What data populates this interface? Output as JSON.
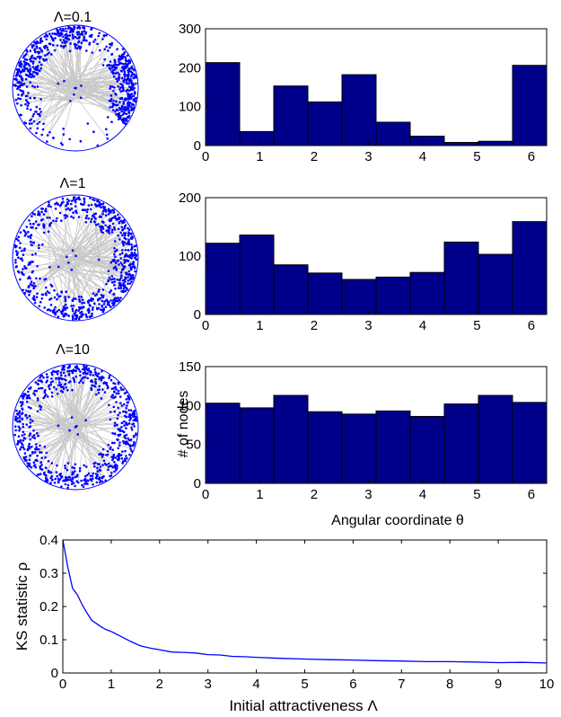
{
  "disk_titles": [
    "Λ=0.1",
    "Λ=1",
    "Λ=10"
  ],
  "colors": {
    "bar_fill": "#00008B",
    "bar_edge": "#000000",
    "node": "#0000FF",
    "edge": "#C8C8C8",
    "line": "#0000FF",
    "axis": "#000000"
  },
  "chart_data": [
    {
      "type": "bar",
      "panel": "histogram-lambda-0.1",
      "bin_edges": [
        0,
        0.6283,
        1.2566,
        1.885,
        2.5133,
        3.1416,
        3.7699,
        4.3982,
        5.0265,
        5.6549,
        6.2832
      ],
      "values": [
        213,
        36,
        153,
        112,
        182,
        60,
        24,
        8,
        11,
        206
      ],
      "xlim": [
        0,
        6.2832
      ],
      "ylim": [
        0,
        300
      ],
      "xticks": [
        0,
        1,
        2,
        3,
        4,
        5,
        6
      ],
      "yticks": [
        0,
        100,
        200,
        300
      ],
      "xlabel": "",
      "ylabel": ""
    },
    {
      "type": "bar",
      "panel": "histogram-lambda-1",
      "bin_edges": [
        0,
        0.6283,
        1.2566,
        1.885,
        2.5133,
        3.1416,
        3.7699,
        4.3982,
        5.0265,
        5.6549,
        6.2832
      ],
      "values": [
        122,
        136,
        85,
        71,
        60,
        64,
        72,
        124,
        103,
        159
      ],
      "xlim": [
        0,
        6.2832
      ],
      "ylim": [
        0,
        200
      ],
      "xticks": [
        0,
        1,
        2,
        3,
        4,
        5,
        6
      ],
      "yticks": [
        0,
        100,
        200
      ],
      "xlabel": "",
      "ylabel": ""
    },
    {
      "type": "bar",
      "panel": "histogram-lambda-10",
      "bin_edges": [
        0,
        0.6283,
        1.2566,
        1.885,
        2.5133,
        3.1416,
        3.7699,
        4.3982,
        5.0265,
        5.6549,
        6.2832
      ],
      "values": [
        103,
        97,
        113,
        92,
        89,
        93,
        86,
        102,
        113,
        104
      ],
      "xlim": [
        0,
        6.2832
      ],
      "ylim": [
        0,
        150
      ],
      "xticks": [
        0,
        1,
        2,
        3,
        4,
        5,
        6
      ],
      "yticks": [
        0,
        50,
        100,
        150
      ],
      "xlabel": "Angular coordinate  θ",
      "ylabel": "# of nodes"
    },
    {
      "type": "line",
      "panel": "ks-statistic",
      "series": [
        {
          "x": [
            0,
            0.1,
            0.2,
            0.3,
            0.4,
            0.5,
            0.6,
            0.7,
            0.8,
            0.9,
            1.0,
            1.2,
            1.4,
            1.6,
            1.8,
            2.0,
            2.25,
            2.5,
            2.75,
            3.0,
            3.25,
            3.5,
            3.75,
            4.0,
            4.5,
            5.0,
            5.5,
            6.0,
            6.5,
            7.0,
            7.5,
            8.0,
            8.5,
            9.0,
            9.5,
            10.0
          ],
          "y": [
            0.4,
            0.32,
            0.255,
            0.235,
            0.205,
            0.18,
            0.158,
            0.148,
            0.138,
            0.13,
            0.125,
            0.11,
            0.095,
            0.082,
            0.075,
            0.07,
            0.063,
            0.062,
            0.06,
            0.055,
            0.054,
            0.05,
            0.049,
            0.047,
            0.044,
            0.042,
            0.04,
            0.039,
            0.037,
            0.036,
            0.034,
            0.034,
            0.033,
            0.031,
            0.032,
            0.03
          ]
        }
      ],
      "xlim": [
        0,
        10
      ],
      "ylim": [
        0,
        0.4
      ],
      "xticks": [
        0,
        1,
        2,
        3,
        4,
        5,
        6,
        7,
        8,
        9,
        10
      ],
      "yticks": [
        0,
        0.1,
        0.2,
        0.3,
        0.4
      ],
      "xticklabels": [
        "0",
        "1",
        "2",
        "3",
        "4",
        "5",
        "6",
        "7",
        "8",
        "9",
        "10"
      ],
      "yticklabels": [
        "0",
        "0.1",
        "0.2",
        "0.3",
        "0.4"
      ],
      "xlabel": "Initial attractiveness Λ",
      "ylabel": "KS statistic ρ"
    }
  ]
}
